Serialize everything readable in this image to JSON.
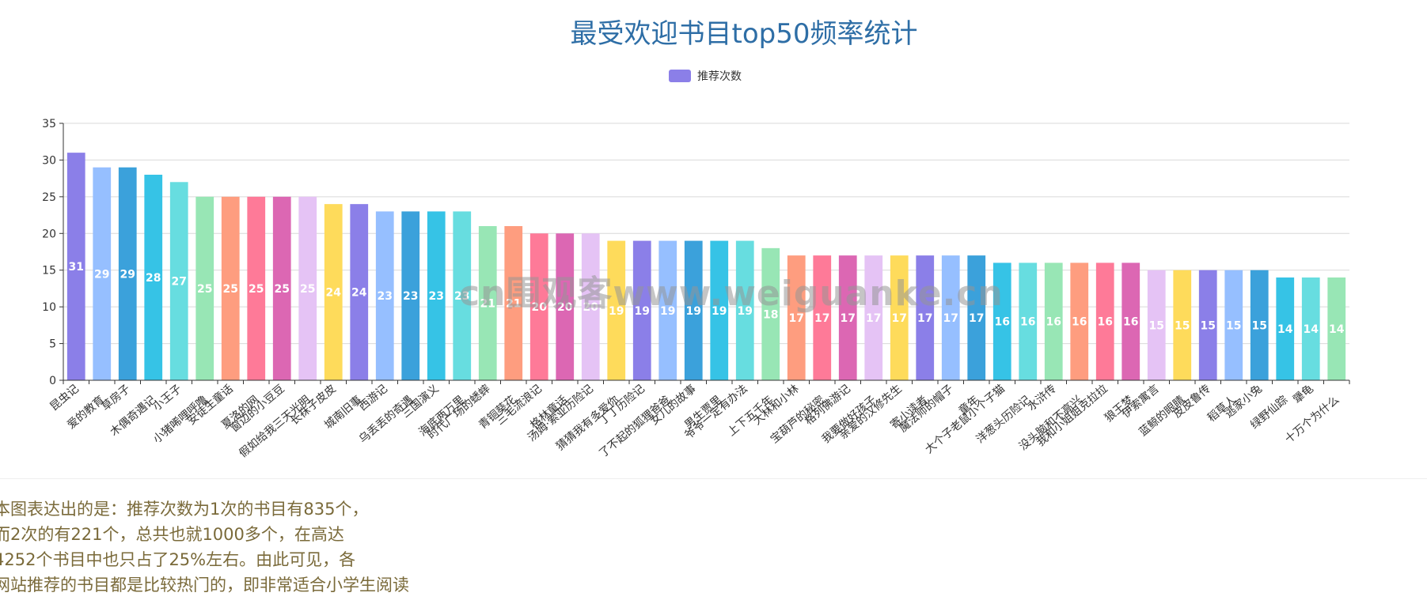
{
  "chart_data": {
    "type": "bar",
    "title": "最受欢迎书目top50频率统计",
    "legend": {
      "label": "推荐次数",
      "position": "top-center",
      "color": "#8B7FE8"
    },
    "ylim": [
      0,
      35
    ],
    "yticks": [
      0,
      5,
      10,
      15,
      20,
      25,
      30,
      35
    ],
    "grid": true,
    "categories": [
      "昆虫记",
      "爱的教育",
      "草房子",
      "木偶奇遇记",
      "小王子",
      "小猪唏哩呼噜",
      "安徒生童话",
      "夏洛的网",
      "窗边的小豆豆",
      "假如给我三天光明",
      "长袜子皮皮",
      "城南旧事",
      "西游记",
      "乌丢丢的奇遇",
      "三国演义",
      "海底两万里",
      "时代广场的蟋蟀",
      "青铜葵花",
      "三毛流浪记",
      "格林童话",
      "汤姆·索亚历险记",
      "猜猜我有多爱你",
      "丁丁历险记",
      "了不起的狐狸爸爸",
      "女儿的故事",
      "男生贾里",
      "爷爷一定有办法",
      "上下五千年",
      "大林和小林",
      "宝葫芦的秘密",
      "格列佛游记",
      "我要做好孩子",
      "亲爱的汉修先生",
      "寄小读者",
      "魔法师的帽子",
      "童年",
      "大个子老鼠小个子猫",
      "洋葱头历险记",
      "水浒传",
      "没头脑和不高兴",
      "我和小姐姐克拉拉",
      "狼王梦",
      "伊索寓言",
      "蓝鲸的眼睛",
      "皮皮鲁传",
      "稻草人",
      "逃家小兔",
      "绿野仙踪",
      "犟龟",
      "十万个为什么"
    ],
    "series": [
      {
        "name": "推荐次数",
        "values": [
          31,
          29,
          29,
          28,
          27,
          25,
          25,
          25,
          25,
          25,
          24,
          24,
          23,
          23,
          23,
          23,
          21,
          21,
          20,
          20,
          20,
          19,
          19,
          19,
          19,
          19,
          19,
          18,
          17,
          17,
          17,
          17,
          17,
          17,
          17,
          17,
          16,
          16,
          16,
          16,
          16,
          16,
          15,
          15,
          15,
          15,
          15,
          14,
          14,
          14
        ]
      }
    ],
    "bar_colors": [
      "#8B7FE8",
      "#96BFFF",
      "#3BA1DB",
      "#36C3E6",
      "#67DDE0",
      "#98E6B5",
      "#FE9D7F",
      "#FE7A98",
      "#DC67B3",
      "#E5C3F5",
      "#FEDB5B"
    ]
  },
  "watermark": "cn围观客www.weiguanke.cn",
  "summary_lines": [
    "本图表达出的是：推荐次数为1次的书目有835个，",
    "而2次的有221个，总共也就1000多个，在高达",
    "4252个书目中也只占了25%左右。由此可见，各",
    "网站推荐的书目都是比较热门的，即非常适合小学生阅读"
  ]
}
